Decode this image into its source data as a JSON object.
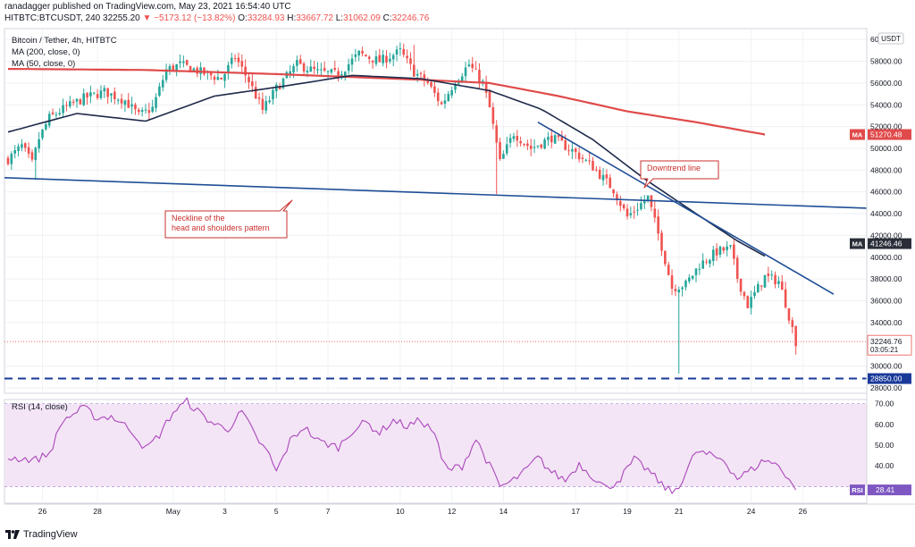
{
  "header": {
    "line1": "ranadagger published on TradingView.com, May 23, 2021 16:54:40 UTC",
    "symbol": "HITBTC:BTCUSDT, 240",
    "price": "32255.20",
    "change_arrow": "▼",
    "change": "−5173.12 (−13.82%)",
    "o_label": "O:",
    "o_val": "33284.93",
    "h_label": "H:",
    "h_val": "33667.72",
    "l_label": "L:",
    "l_val": "31062.09",
    "c_label": "C:",
    "c_val": "32246.76"
  },
  "legend": {
    "title": "Bitcoin / Tether, 4h, HITBTC",
    "ma200": "MA (200, close, 0)",
    "ma50": "MA (50, close, 0)"
  },
  "currency_badge": "USDT",
  "footer": {
    "brand": "TradingView"
  },
  "colors": {
    "bull": "#26a69a",
    "bear": "#ef5350",
    "ma50": "#1e2a4a",
    "ma200": "#e04a4a",
    "trendline": "#1f4e96",
    "support": "#1a3a9a",
    "rsi": "#ab47bc",
    "rsi_band": "#f3e5f5"
  },
  "chart_data": [
    {
      "type": "candlestick",
      "title": "Bitcoin / Tether, 4h, HITBTC",
      "ylim": [
        27500,
        61000
      ],
      "x_tick_labels": [
        "26",
        "28",
        "May",
        "3",
        "5",
        "7",
        "10",
        "12",
        "14",
        "17",
        "19",
        "21",
        "24",
        "26"
      ],
      "y_tick_labels": [
        "60000.00",
        "58000.00",
        "56000.00",
        "54000.00",
        "52000.00",
        "50000.00",
        "48000.00",
        "46000.00",
        "44000.00",
        "42000.00",
        "40000.00",
        "38000.00",
        "36000.00",
        "34000.00",
        "30000.00",
        "28000.00"
      ],
      "anchors_close": [
        [
          0,
          49000
        ],
        [
          4,
          50200
        ],
        [
          7,
          48600
        ],
        [
          9,
          50900
        ],
        [
          12,
          52800
        ],
        [
          16,
          53600
        ],
        [
          22,
          54600
        ],
        [
          28,
          55200
        ],
        [
          34,
          54400
        ],
        [
          38,
          53000
        ],
        [
          42,
          53700
        ],
        [
          46,
          57200
        ],
        [
          50,
          57700
        ],
        [
          56,
          57000
        ],
        [
          62,
          56400
        ],
        [
          66,
          58400
        ],
        [
          70,
          56200
        ],
        [
          74,
          53500
        ],
        [
          78,
          55500
        ],
        [
          84,
          57700
        ],
        [
          90,
          57000
        ],
        [
          96,
          56800
        ],
        [
          102,
          58700
        ],
        [
          108,
          58000
        ],
        [
          114,
          58900
        ],
        [
          118,
          57000
        ],
        [
          122,
          56000
        ],
        [
          126,
          54000
        ],
        [
          130,
          56200
        ],
        [
          134,
          57700
        ],
        [
          138,
          56000
        ],
        [
          140,
          53700
        ],
        [
          143,
          48700
        ],
        [
          147,
          51400
        ],
        [
          152,
          50000
        ],
        [
          158,
          51000
        ],
        [
          164,
          49800
        ],
        [
          170,
          48300
        ],
        [
          176,
          46200
        ],
        [
          180,
          43700
        ],
        [
          186,
          45500
        ],
        [
          190,
          41000
        ],
        [
          193,
          37200
        ],
        [
          197,
          37500
        ],
        [
          201,
          39300
        ],
        [
          206,
          40500
        ],
        [
          210,
          40800
        ],
        [
          212,
          38100
        ],
        [
          215,
          35600
        ],
        [
          220,
          38200
        ],
        [
          224,
          37800
        ],
        [
          226,
          35800
        ],
        [
          229,
          32250
        ]
      ],
      "highs_lows": {
        "high_point": {
          "x": 118,
          "y": 59500
        },
        "drop_wick_low": {
          "x": 195,
          "y": 29300
        }
      },
      "indicators": {
        "ma50": [
          [
            0,
            51500
          ],
          [
            20,
            53200
          ],
          [
            40,
            52500
          ],
          [
            60,
            54800
          ],
          [
            80,
            55700
          ],
          [
            100,
            56700
          ],
          [
            120,
            56400
          ],
          [
            140,
            55300
          ],
          [
            155,
            53600
          ],
          [
            170,
            50800
          ],
          [
            185,
            47200
          ],
          [
            200,
            44000
          ],
          [
            212,
            41500
          ],
          [
            220,
            40100
          ]
        ],
        "ma200": [
          [
            0,
            57300
          ],
          [
            40,
            57200
          ],
          [
            80,
            56800
          ],
          [
            120,
            56300
          ],
          [
            140,
            56000
          ],
          [
            160,
            54800
          ],
          [
            180,
            53400
          ],
          [
            200,
            52400
          ],
          [
            220,
            51270
          ]
        ]
      },
      "levels": {
        "ma200_value": "51270.48",
        "ma50_value": "41246.46",
        "last_price": "32246.76",
        "countdown": "03:05:21",
        "support": "28850.00",
        "support_value": 28850
      },
      "annotations": {
        "neckline_label_1": "Neckline of the",
        "neckline_label_2": "head and shoulders pattern",
        "downtrend_label": "Downtrend line",
        "neckline": [
          [
            0,
            47300
          ],
          [
            250,
            44500
          ]
        ],
        "downtrend": [
          [
            154,
            52400
          ],
          [
            240,
            36600
          ]
        ]
      },
      "ma_tag": "MA"
    },
    {
      "type": "line",
      "title": "RSI (14, close)",
      "ylim": [
        22,
        72
      ],
      "band": [
        30,
        70
      ],
      "y_tick_labels": [
        "70.00",
        "60.00",
        "50.00",
        "40.00"
      ],
      "rsi_anchors": [
        [
          0,
          44
        ],
        [
          8,
          43
        ],
        [
          12,
          46
        ],
        [
          16,
          62
        ],
        [
          22,
          68
        ],
        [
          26,
          63
        ],
        [
          30,
          64
        ],
        [
          36,
          57
        ],
        [
          40,
          48
        ],
        [
          44,
          55
        ],
        [
          48,
          66
        ],
        [
          52,
          71
        ],
        [
          56,
          65
        ],
        [
          60,
          60
        ],
        [
          64,
          58
        ],
        [
          68,
          66
        ],
        [
          72,
          54
        ],
        [
          76,
          45
        ],
        [
          78,
          37
        ],
        [
          82,
          52
        ],
        [
          86,
          59
        ],
        [
          90,
          52
        ],
        [
          96,
          49
        ],
        [
          100,
          57
        ],
        [
          104,
          61
        ],
        [
          108,
          56
        ],
        [
          112,
          62
        ],
        [
          116,
          59
        ],
        [
          120,
          62
        ],
        [
          124,
          56
        ],
        [
          126,
          43
        ],
        [
          128,
          38
        ],
        [
          132,
          40
        ],
        [
          136,
          53
        ],
        [
          140,
          40
        ],
        [
          143,
          30
        ],
        [
          146,
          32
        ],
        [
          150,
          37
        ],
        [
          154,
          44
        ],
        [
          158,
          37
        ],
        [
          162,
          33
        ],
        [
          166,
          41
        ],
        [
          170,
          35
        ],
        [
          174,
          29
        ],
        [
          178,
          34
        ],
        [
          182,
          43
        ],
        [
          186,
          38
        ],
        [
          190,
          31
        ],
        [
          193,
          27
        ],
        [
          196,
          33
        ],
        [
          200,
          47
        ],
        [
          204,
          45
        ],
        [
          208,
          43
        ],
        [
          212,
          34
        ],
        [
          216,
          38
        ],
        [
          220,
          43
        ],
        [
          224,
          40
        ],
        [
          227,
          34
        ],
        [
          229,
          28.4
        ]
      ],
      "rsi_value": "28.41",
      "rsi_tag": "RSI"
    }
  ]
}
